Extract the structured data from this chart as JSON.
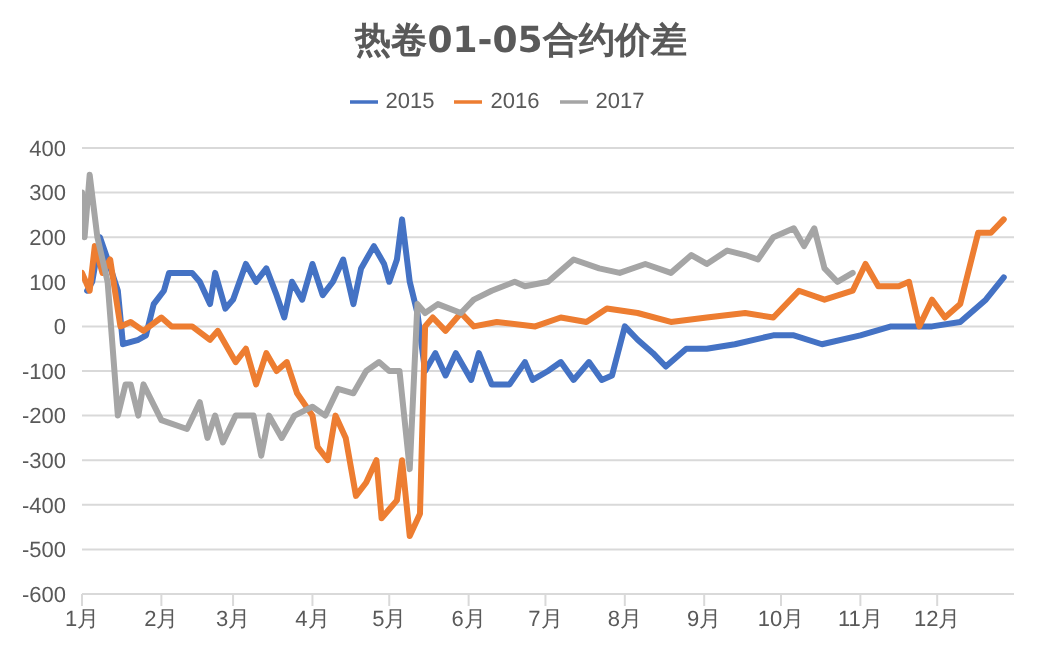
{
  "chart_data": {
    "type": "line",
    "title": "热卷01-05合约价差",
    "xlim": [
      "--01-01",
      "--12-31"
    ],
    "xticks": [
      {
        "value": "--01-01",
        "label": "1月"
      },
      {
        "value": "--02-01",
        "label": "2月"
      },
      {
        "value": "--03-01",
        "label": "3月"
      },
      {
        "value": "--04-01",
        "label": "4月"
      },
      {
        "value": "--05-01",
        "label": "5月"
      },
      {
        "value": "--06-01",
        "label": "6月"
      },
      {
        "value": "--07-01",
        "label": "7月"
      },
      {
        "value": "--08-01",
        "label": "8月"
      },
      {
        "value": "--09-01",
        "label": "9月"
      },
      {
        "value": "--10-01",
        "label": "10月"
      },
      {
        "value": "--11-01",
        "label": "11月"
      },
      {
        "value": "--12-01",
        "label": "12月"
      }
    ],
    "ylim": [
      -600,
      400
    ],
    "yticks": [
      -600,
      -500,
      -400,
      -300,
      -200,
      -100,
      0,
      100,
      200,
      300,
      400
    ],
    "grid": "y",
    "legend": "top",
    "marker": "none",
    "line_style": "solid",
    "series": [
      {
        "name": "2015",
        "color": "#4472c4",
        "x": [
          "--01-03",
          "--01-05",
          "--01-08",
          "--01-11",
          "--01-15",
          "--01-17",
          "--01-23",
          "--01-26",
          "--01-29",
          "--02-02",
          "--02-04",
          "--02-13",
          "--02-16",
          "--02-20",
          "--02-22",
          "--02-26",
          "--03-01",
          "--03-06",
          "--03-10",
          "--03-14",
          "--03-18",
          "--03-21",
          "--03-24",
          "--03-28",
          "--04-01",
          "--04-05",
          "--04-09",
          "--04-13",
          "--04-17",
          "--04-20",
          "--04-25",
          "--04-29",
          "--05-01",
          "--05-04",
          "--05-06",
          "--05-09",
          "--05-12",
          "--05-15",
          "--05-19",
          "--05-23",
          "--05-27",
          "--06-02",
          "--06-05",
          "--06-10",
          "--06-17",
          "--06-23",
          "--06-26",
          "--07-02",
          "--07-07",
          "--07-12",
          "--07-18",
          "--07-23",
          "--07-27",
          "--08-01",
          "--08-06",
          "--08-12",
          "--08-17",
          "--08-25",
          "--09-02",
          "--09-13",
          "--09-28",
          "--10-06",
          "--10-17",
          "--11-01",
          "--11-13",
          "--11-29",
          "--12-10",
          "--12-20",
          "--12-27"
        ],
        "values": [
          80,
          100,
          200,
          150,
          80,
          -40,
          -30,
          -20,
          50,
          80,
          120,
          120,
          100,
          50,
          120,
          40,
          60,
          140,
          100,
          130,
          70,
          20,
          100,
          60,
          140,
          70,
          100,
          150,
          50,
          130,
          180,
          140,
          100,
          150,
          240,
          100,
          30,
          -100,
          -60,
          -110,
          -60,
          -120,
          -60,
          -130,
          -130,
          -80,
          -120,
          -100,
          -80,
          -120,
          -80,
          -120,
          -110,
          0,
          -30,
          -60,
          -90,
          -50,
          -50,
          -40,
          -20,
          -20,
          -40,
          -20,
          0,
          0,
          10,
          60,
          110
        ]
      },
      {
        "name": "2016",
        "color": "#ed7d31",
        "x": [
          "--01-01",
          "--01-04",
          "--01-06",
          "--01-09",
          "--01-12",
          "--01-16",
          "--01-20",
          "--01-25",
          "--02-01",
          "--02-05",
          "--02-13",
          "--02-20",
          "--02-23",
          "--03-02",
          "--03-06",
          "--03-10",
          "--03-14",
          "--03-18",
          "--03-22",
          "--03-26",
          "--04-01",
          "--04-03",
          "--04-07",
          "--04-10",
          "--04-14",
          "--04-18",
          "--04-22",
          "--04-26",
          "--04-28",
          "--05-01",
          "--05-04",
          "--05-06",
          "--05-09",
          "--05-13",
          "--05-15",
          "--05-18",
          "--05-23",
          "--05-29",
          "--06-03",
          "--06-12",
          "--06-27",
          "--07-07",
          "--07-17",
          "--07-25",
          "--08-06",
          "--08-19",
          "--09-02",
          "--09-17",
          "--09-28",
          "--10-08",
          "--10-18",
          "--10-29",
          "--11-03",
          "--11-08",
          "--11-16",
          "--11-20",
          "--11-24",
          "--11-29",
          "--12-04",
          "--12-10",
          "--12-17",
          "--12-22",
          "--12-27"
        ],
        "values": [
          120,
          80,
          180,
          120,
          150,
          0,
          10,
          -10,
          20,
          0,
          0,
          -30,
          -10,
          -80,
          -50,
          -130,
          -60,
          -100,
          -80,
          -150,
          -200,
          -270,
          -300,
          -200,
          -250,
          -380,
          -350,
          -300,
          -430,
          -410,
          -390,
          -300,
          -470,
          -420,
          0,
          20,
          -10,
          30,
          0,
          10,
          0,
          20,
          10,
          40,
          30,
          10,
          20,
          30,
          20,
          80,
          60,
          80,
          140,
          90,
          90,
          100,
          0,
          60,
          20,
          50,
          210,
          210,
          240
        ]
      },
      {
        "name": "2017",
        "color": "#a5a5a5",
        "x": [
          "--01-01",
          "--01-02",
          "--01-04",
          "--01-07",
          "--01-11",
          "--01-15",
          "--01-18",
          "--01-20",
          "--01-23",
          "--01-25",
          "--02-01",
          "--02-11",
          "--02-16",
          "--02-19",
          "--02-22",
          "--02-25",
          "--03-02",
          "--03-09",
          "--03-12",
          "--03-15",
          "--03-20",
          "--03-25",
          "--04-01",
          "--04-06",
          "--04-11",
          "--04-17",
          "--04-22",
          "--04-27",
          "--05-01",
          "--05-05",
          "--05-09",
          "--05-12",
          "--05-15",
          "--05-20",
          "--05-29",
          "--06-03",
          "--06-10",
          "--06-19",
          "--06-23",
          "--07-02",
          "--07-12",
          "--07-22",
          "--07-30",
          "--08-09",
          "--08-19",
          "--08-27",
          "--09-02",
          "--09-10",
          "--09-17",
          "--09-22",
          "--09-28",
          "--10-06",
          "--10-10",
          "--10-14",
          "--10-18",
          "--10-23",
          "--10-29"
        ],
        "values": [
          300,
          200,
          340,
          200,
          100,
          -200,
          -130,
          -130,
          -200,
          -130,
          -210,
          -230,
          -170,
          -250,
          -200,
          -260,
          -200,
          -200,
          -290,
          -200,
          -250,
          -200,
          -180,
          -200,
          -140,
          -150,
          -100,
          -80,
          -100,
          -100,
          -320,
          50,
          30,
          50,
          30,
          60,
          80,
          100,
          90,
          100,
          150,
          130,
          120,
          140,
          120,
          160,
          140,
          170,
          160,
          150,
          200,
          220,
          180,
          220,
          130,
          100,
          120
        ]
      }
    ]
  }
}
